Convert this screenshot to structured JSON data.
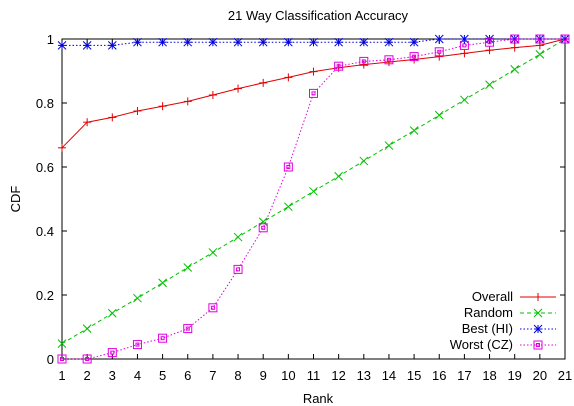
{
  "chart_data": {
    "type": "line",
    "title": "21 Way Classification Accuracy",
    "xlabel": "Rank",
    "ylabel": "CDF",
    "xlim": [
      1,
      21
    ],
    "ylim": [
      0,
      1
    ],
    "x_ticks": [
      "1",
      "2",
      "3",
      "4",
      "5",
      "6",
      "7",
      "8",
      "9",
      "10",
      "11",
      "12",
      "13",
      "14",
      "15",
      "16",
      "17",
      "18",
      "19",
      "20",
      "21"
    ],
    "y_ticks": [
      "0",
      "0.2",
      "0.4",
      "0.6",
      "0.8",
      "1"
    ],
    "grid": false,
    "legend_position": "bottom-right",
    "x": [
      1,
      2,
      3,
      4,
      5,
      6,
      7,
      8,
      9,
      10,
      11,
      12,
      13,
      14,
      15,
      16,
      17,
      18,
      19,
      20,
      21
    ],
    "series": [
      {
        "name": "Overall",
        "color": "#e00000",
        "marker": "plus",
        "dash": "solid",
        "values": [
          0.66,
          0.74,
          0.755,
          0.775,
          0.79,
          0.805,
          0.825,
          0.845,
          0.863,
          0.88,
          0.898,
          0.91,
          0.92,
          0.928,
          0.936,
          0.945,
          0.955,
          0.965,
          0.973,
          0.98,
          1.0
        ]
      },
      {
        "name": "Random",
        "color": "#00c000",
        "marker": "cross",
        "dash": "dashed",
        "values": [
          0.048,
          0.095,
          0.143,
          0.19,
          0.238,
          0.286,
          0.333,
          0.381,
          0.429,
          0.476,
          0.524,
          0.571,
          0.619,
          0.667,
          0.714,
          0.762,
          0.81,
          0.857,
          0.905,
          0.952,
          1.0
        ]
      },
      {
        "name": "Best (HI)",
        "color": "#0000e0",
        "marker": "star",
        "dash": "dotted",
        "values": [
          0.98,
          0.98,
          0.98,
          0.99,
          0.99,
          0.99,
          0.99,
          0.99,
          0.99,
          0.99,
          0.99,
          0.99,
          0.99,
          0.99,
          0.99,
          1.0,
          1.0,
          1.0,
          1.0,
          1.0,
          1.0
        ]
      },
      {
        "name": "Worst (CZ)",
        "color": "#e000e0",
        "marker": "square",
        "dash": "dotted",
        "values": [
          0.0,
          0.0,
          0.02,
          0.045,
          0.065,
          0.095,
          0.16,
          0.28,
          0.41,
          0.6,
          0.83,
          0.915,
          0.93,
          0.935,
          0.945,
          0.96,
          0.98,
          0.99,
          1.0,
          1.0,
          1.0
        ]
      }
    ]
  }
}
